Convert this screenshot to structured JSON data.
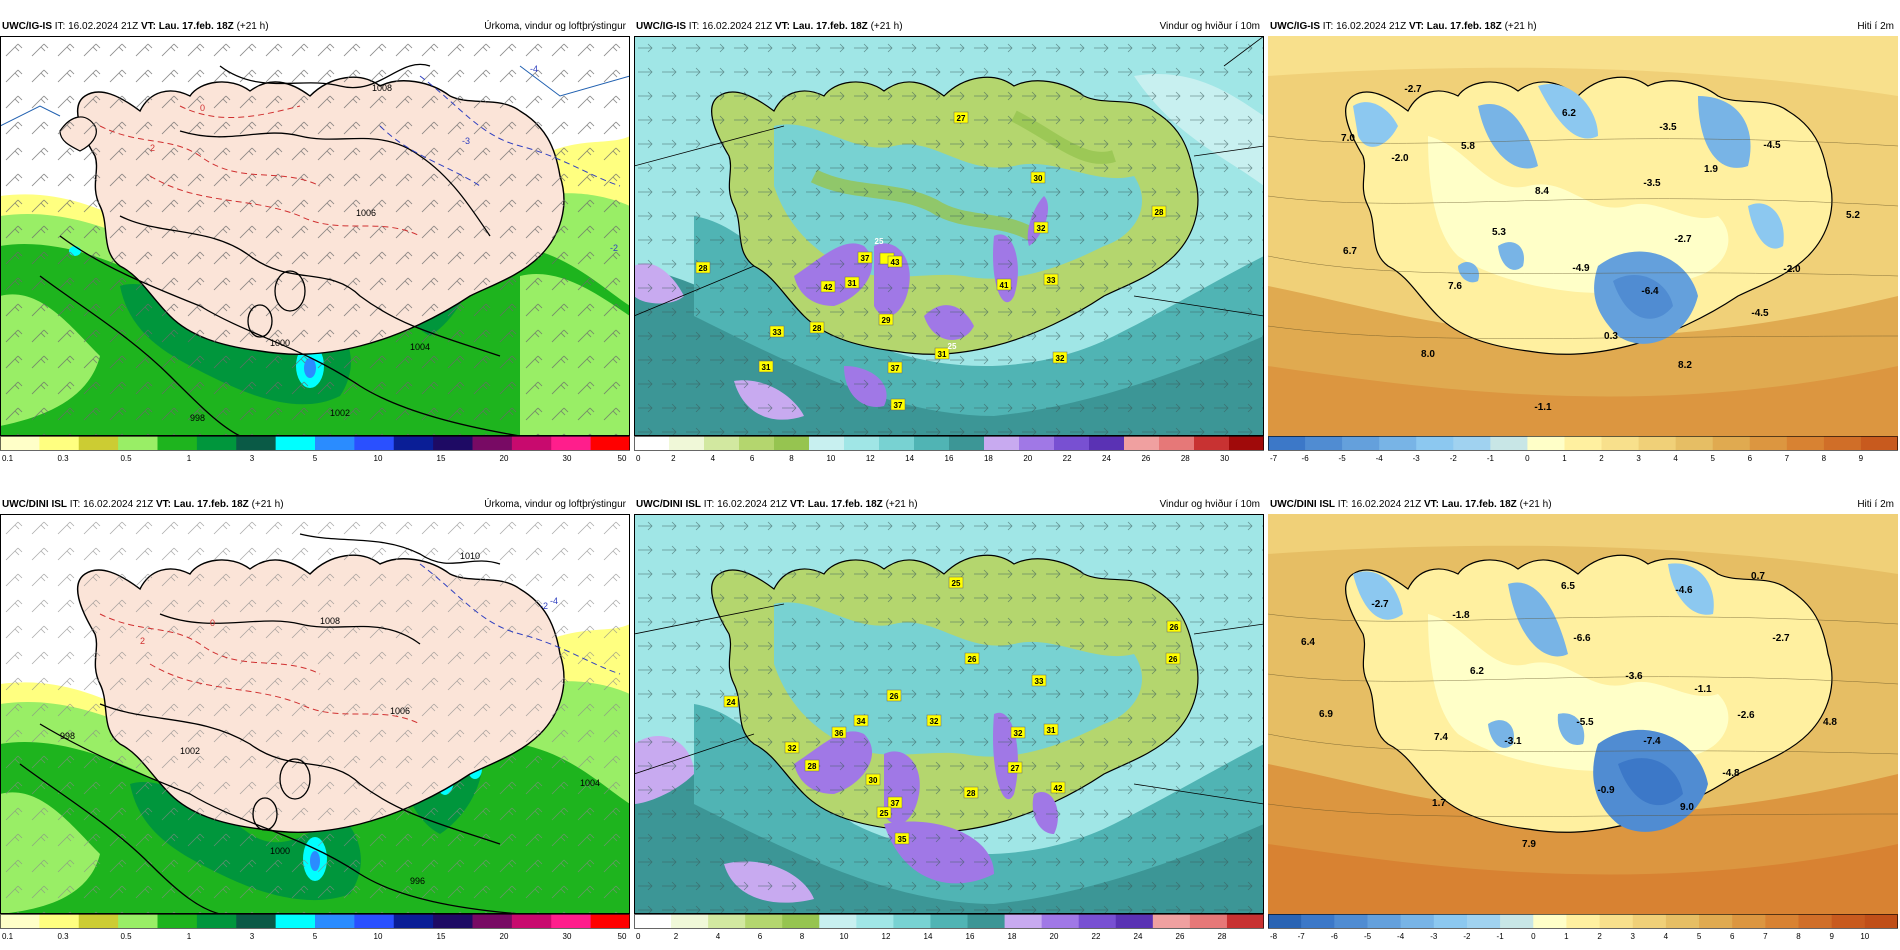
{
  "rows": [
    {
      "panels": [
        {
          "model": "UWC/IG-IS",
          "init_label": "IT:",
          "init": "16.02.2024 21Z",
          "valid_label": "VT:",
          "valid": "Lau. 17.feb. 18Z",
          "lead": "(+21 h)",
          "title": "Úrkoma, vindur og loftþrýstingur",
          "scale": {
            "colors": [
              "#ffffc8",
              "#ffff80",
              "#cccc33",
              "#99ee66",
              "#1eb41e",
              "#00963c",
              "#0a5a46",
              "#00ffff",
              "#2a8cff",
              "#2a50ff",
              "#0a1e96",
              "#1e0a64",
              "#780a64",
              "#c80a6e",
              "#ff1e8c",
              "#ff0000"
            ],
            "ticks": [
              "0.1",
              "0.3",
              "0.5",
              "1",
              "3",
              "5",
              "10",
              "15",
              "20",
              "30",
              "50"
            ]
          },
          "isobars": [
            "1008",
            "1006",
            "1004",
            "1002",
            "1000",
            "998"
          ],
          "map_labels": [
            "1008",
            "1006",
            "1004",
            "1002",
            "1000",
            "998",
            "-2",
            "-4",
            "-3",
            "0",
            "2"
          ]
        },
        {
          "model": "UWC/IG-IS",
          "init_label": "IT:",
          "init": "16.02.2024 21Z",
          "valid_label": "VT:",
          "valid": "Lau. 17.feb. 18Z",
          "lead": "(+21 h)",
          "title": "Vindur og hviður í 10m",
          "scale": {
            "colors": [
              "#ffffff",
              "#f0f8d8",
              "#d2e8a0",
              "#b4d66e",
              "#96c450",
              "#c8f0f0",
              "#a0e6e6",
              "#78d2d2",
              "#50b4b4",
              "#3c9696",
              "#c8aaf0",
              "#a078e6",
              "#7850d2",
              "#5a32b4",
              "#f0a0a0",
              "#e67878",
              "#c83232",
              "#a00a0a"
            ],
            "ticks": [
              "0",
              "2",
              "4",
              "6",
              "8",
              "10",
              "12",
              "14",
              "16",
              "18",
              "20",
              "22",
              "24",
              "26",
              "28",
              "30"
            ]
          },
          "gust_labels": [
            "27",
            "30",
            "28",
            "32",
            "28",
            "25",
            "43",
            "37",
            "31",
            "41",
            "33",
            "42",
            "29",
            "28",
            "33",
            "31",
            "25",
            "32",
            "31",
            "37",
            "37"
          ]
        },
        {
          "model": "UWC/IG-IS",
          "init_label": "IT:",
          "init": "16.02.2024 21Z",
          "valid_label": "VT:",
          "valid": "Lau. 17.feb. 18Z",
          "lead": "(+21 h)",
          "title": "Hiti í 2m",
          "scale": {
            "colors": [
              "#3c78c8",
              "#508cd2",
              "#64a0dc",
              "#78b4e6",
              "#8cc8f0",
              "#a0d2f0",
              "#c8e6e6",
              "#ffffc8",
              "#fff0a0",
              "#f8e08c",
              "#f0d078",
              "#e6be64",
              "#e0aa50",
              "#dc9640",
              "#d88232",
              "#d06e28",
              "#c85a1e"
            ],
            "ticks": [
              "-7",
              "-6",
              "-5",
              "-4",
              "-3",
              "-2",
              "-1",
              "0",
              "1",
              "2",
              "3",
              "4",
              "5",
              "6",
              "7",
              "8",
              "9"
            ]
          },
          "temp_labels": [
            "-2.7",
            "7.0",
            "-2.0",
            "5.8",
            "6.2",
            "-3.5",
            "-4.5",
            "1.9",
            "8.4",
            "-3.5",
            "5.2",
            "5.3",
            "-2.7",
            "6.7",
            "7.6",
            "-4.9",
            "-6.4",
            "-2.0",
            "-4.5",
            "0.3",
            "8.0",
            "8.2",
            "-1.1"
          ]
        }
      ]
    },
    {
      "panels": [
        {
          "model": "UWC/DINI ISL",
          "init_label": "IT:",
          "init": "16.02.2024 21Z",
          "valid_label": "VT:",
          "valid": "Lau. 17.feb. 18Z",
          "lead": "(+21 h)",
          "title": "Úrkoma, vindur og loftþrýstingur",
          "scale": {
            "colors": [
              "#ffffc8",
              "#ffff80",
              "#cccc33",
              "#99ee66",
              "#1eb41e",
              "#00963c",
              "#0a5a46",
              "#00ffff",
              "#2a8cff",
              "#2a50ff",
              "#0a1e96",
              "#1e0a64",
              "#780a64",
              "#c80a6e",
              "#ff1e8c",
              "#ff0000"
            ],
            "ticks": [
              "0.1",
              "0.3",
              "0.5",
              "1",
              "3",
              "5",
              "10",
              "15",
              "20",
              "30",
              "50"
            ]
          },
          "isobars": [
            "1010",
            "1008",
            "1006",
            "1004",
            "1002",
            "1000",
            "998",
            "996"
          ],
          "map_labels": [
            "1010",
            "1008",
            "1006",
            "1004",
            "1002",
            "1000",
            "998",
            "996",
            "-2",
            "-4",
            "0",
            "2"
          ]
        },
        {
          "model": "UWC/DINI ISL",
          "init_label": "IT:",
          "init": "16.02.2024 21Z",
          "valid_label": "VT:",
          "valid": "Lau. 17.feb. 18Z",
          "lead": "(+21 h)",
          "title": "Vindur og hviður í 10m",
          "scale": {
            "colors": [
              "#ffffff",
              "#f0f8d8",
              "#d2e8a0",
              "#b4d66e",
              "#96c450",
              "#c8f0f0",
              "#a0e6e6",
              "#78d2d2",
              "#50b4b4",
              "#3c9696",
              "#c8aaf0",
              "#a078e6",
              "#7850d2",
              "#5a32b4",
              "#f0a0a0",
              "#e67878",
              "#c83232"
            ],
            "ticks": [
              "0",
              "2",
              "4",
              "6",
              "8",
              "10",
              "12",
              "14",
              "16",
              "18",
              "20",
              "22",
              "24",
              "26",
              "28"
            ]
          },
          "gust_labels": [
            "25",
            "26",
            "26",
            "26",
            "24",
            "26",
            "33",
            "34",
            "32",
            "36",
            "32",
            "31",
            "32",
            "28",
            "27",
            "30",
            "28",
            "42",
            "37",
            "25",
            "35"
          ]
        },
        {
          "model": "UWC/DINI ISL",
          "init_label": "IT:",
          "init": "16.02.2024 21Z",
          "valid_label": "VT:",
          "valid": "Lau. 17.feb. 18Z",
          "lead": "(+21 h)",
          "title": "Hiti í 2m",
          "scale": {
            "colors": [
              "#2a64b4",
              "#3c78c8",
              "#508cd2",
              "#64a0dc",
              "#78b4e6",
              "#8cc8f0",
              "#a0d2f0",
              "#c8e6e6",
              "#ffffc8",
              "#fff0a0",
              "#f8e08c",
              "#f0d078",
              "#e6be64",
              "#e0aa50",
              "#dc9640",
              "#d88232",
              "#d06e28",
              "#c85a1e",
              "#c04e18"
            ],
            "ticks": [
              "-8",
              "-7",
              "-6",
              "-5",
              "-4",
              "-3",
              "-2",
              "-1",
              "0",
              "1",
              "2",
              "3",
              "4",
              "5",
              "6",
              "7",
              "8",
              "9",
              "10"
            ]
          },
          "temp_labels": [
            "-2.7",
            "-1.8",
            "6.5",
            "-4.6",
            "0.7",
            "6.4",
            "-6.6",
            "-2.7",
            "6.2",
            "-3.6",
            "-1.1",
            "6.9",
            "-5.5",
            "-2.6",
            "4.8",
            "7.4",
            "-3.1",
            "-7.4",
            "-4.8",
            "-0.9",
            "1.7",
            "9.0",
            "7.9"
          ]
        }
      ]
    }
  ]
}
